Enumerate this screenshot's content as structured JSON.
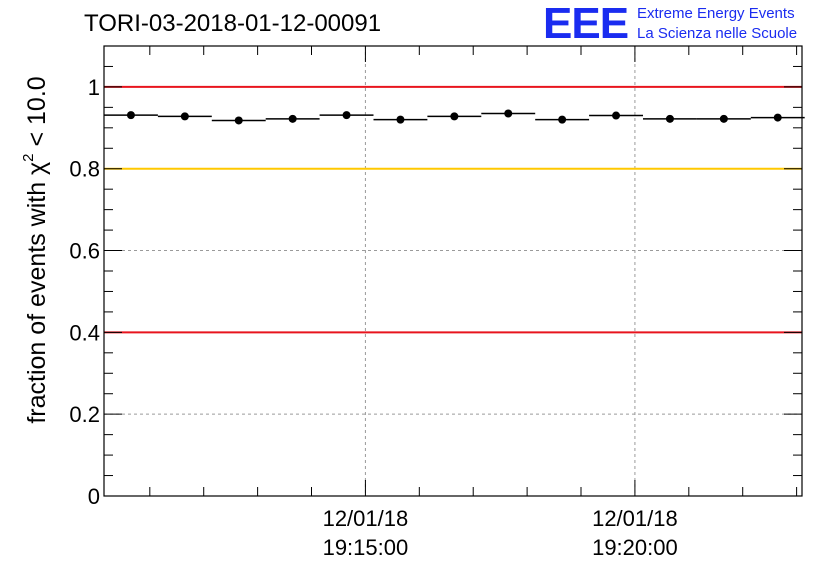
{
  "header": {
    "run_title": "TORI-03-2018-01-12-00091"
  },
  "logo": {
    "mark": "EEE",
    "line1": "Extreme Energy Events",
    "line2": "La Scienza nelle Scuole"
  },
  "colors": {
    "logo_blue": "#1a2cf0",
    "red_threshold": "#e8141e",
    "yellow_threshold": "#ffc800",
    "grid": "#9a9a9a",
    "marker": "#000000"
  },
  "chart_data": {
    "type": "scatter",
    "title": "TORI-03-2018-01-12-00091",
    "ylabel_prefix": "fraction of events with ",
    "ylabel_symbol": "χ",
    "ylabel_exponent": "2",
    "ylabel_suffix": " < 10.0",
    "ylim": [
      0,
      1.1
    ],
    "yticks": [
      0,
      0.2,
      0.4,
      0.6,
      0.8,
      1
    ],
    "ytick_labels": [
      "0",
      "0.2",
      "0.4",
      "0.6",
      "0.8",
      "1"
    ],
    "x_unit": "minutes since 19:10:00 (12/01/18)",
    "xlim": [
      0.15,
      13.1
    ],
    "xticks": [
      5,
      10
    ],
    "xtick_labels": [
      {
        "date": "12/01/18",
        "time": "19:15:00"
      },
      {
        "date": "12/01/18",
        "time": "19:20:00"
      }
    ],
    "grid": true,
    "bin_width": 1.0,
    "points": [
      {
        "x": 0.65,
        "y": 0.931
      },
      {
        "x": 1.65,
        "y": 0.928
      },
      {
        "x": 2.65,
        "y": 0.918
      },
      {
        "x": 3.65,
        "y": 0.922
      },
      {
        "x": 4.65,
        "y": 0.931
      },
      {
        "x": 5.65,
        "y": 0.92
      },
      {
        "x": 6.65,
        "y": 0.928
      },
      {
        "x": 7.65,
        "y": 0.935
      },
      {
        "x": 8.65,
        "y": 0.92
      },
      {
        "x": 9.65,
        "y": 0.93
      },
      {
        "x": 10.65,
        "y": 0.922
      },
      {
        "x": 11.65,
        "y": 0.922
      },
      {
        "x": 12.65,
        "y": 0.925
      }
    ],
    "reference_lines": [
      {
        "y": 1.0,
        "color": "#e8141e",
        "name": "upper-red"
      },
      {
        "y": 0.8,
        "color": "#ffc800",
        "name": "yellow"
      },
      {
        "y": 0.4,
        "color": "#e8141e",
        "name": "lower-red"
      }
    ]
  }
}
